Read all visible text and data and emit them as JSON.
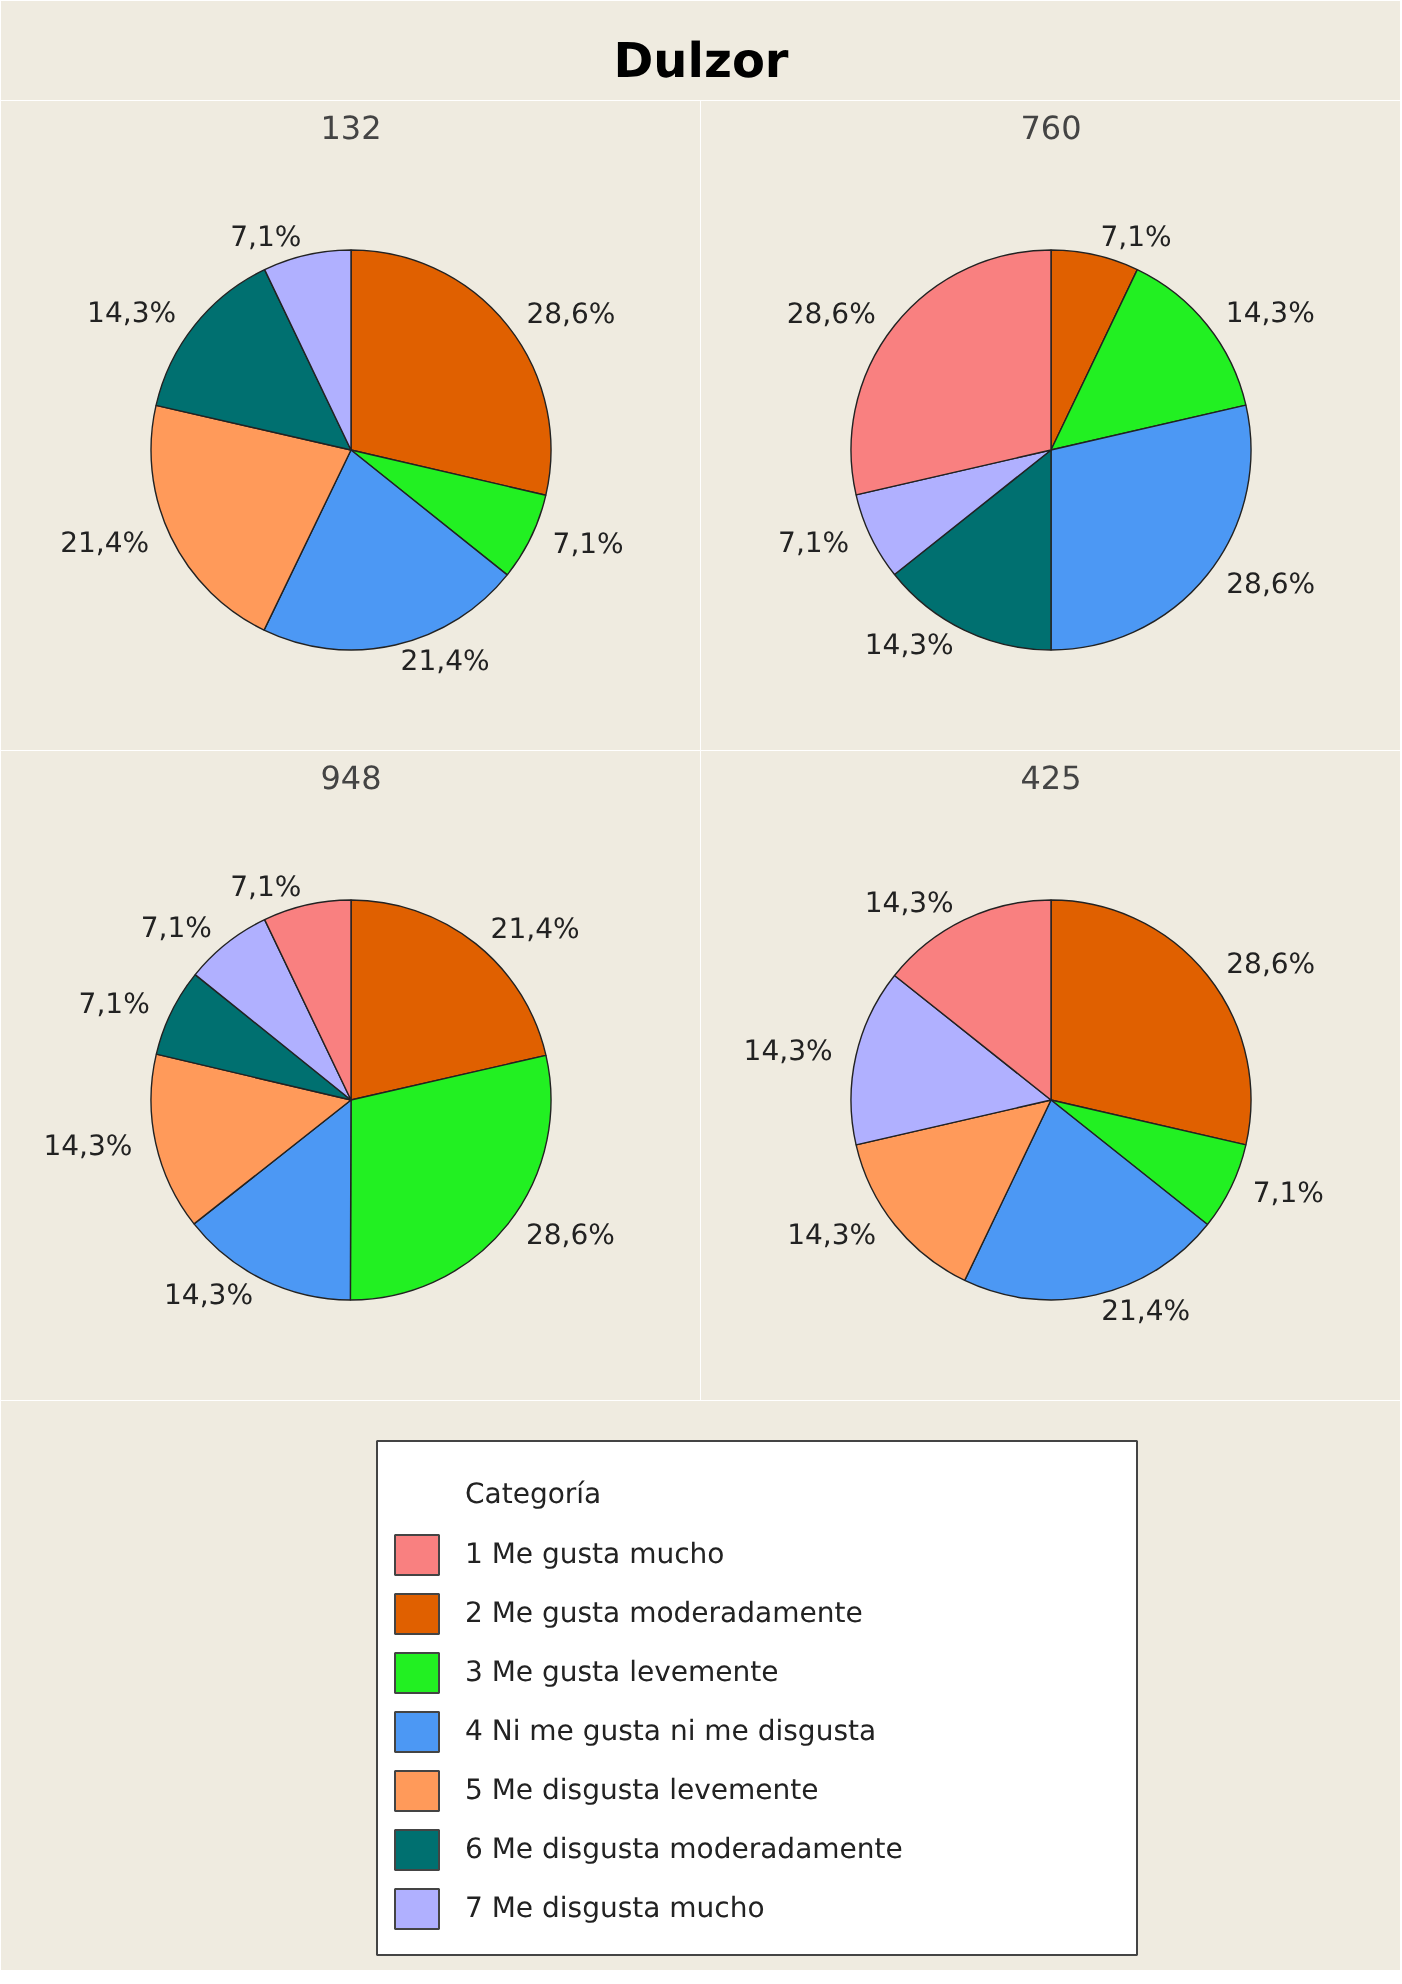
{
  "chart_data": [
    {
      "type": "pie",
      "title": "132",
      "annotations": [
        "Dulzor"
      ],
      "legend": "bottom",
      "legend_title": "Categoría",
      "categories": [
        "1 Me gusta mucho",
        "2 Me gusta moderadamente",
        "3 Me gusta levemente",
        "4 Ni me gusta ni me disgusta",
        "5 Me disgusta levemente",
        "6 Me disgusta moderadamente",
        "7 Me disgusta mucho"
      ],
      "colors": [
        "#f98080",
        "#e06000",
        "#22f022",
        "#4c98f4",
        "#ff9a5a",
        "#007070",
        "#b0b0ff"
      ],
      "values": [
        0,
        28.6,
        7.1,
        21.4,
        21.4,
        14.3,
        7.1
      ],
      "value_labels": [
        null,
        "28,6%",
        "7,1%",
        "21,4%",
        "21,4%",
        "14,3%",
        "7,1%"
      ]
    },
    {
      "type": "pie",
      "title": "760",
      "colors": [
        "#f98080",
        "#e06000",
        "#22f022",
        "#4c98f4",
        "#ff9a5a",
        "#007070",
        "#b0b0ff"
      ],
      "values": [
        28.6,
        7.1,
        14.3,
        28.6,
        0,
        14.3,
        7.1
      ],
      "value_labels": [
        "28,6%",
        "7,1%",
        "14,3%",
        "28,6%",
        null,
        "14,3%",
        "7,1%"
      ]
    },
    {
      "type": "pie",
      "title": "948",
      "colors": [
        "#f98080",
        "#e06000",
        "#22f022",
        "#4c98f4",
        "#ff9a5a",
        "#007070",
        "#b0b0ff"
      ],
      "values": [
        7.1,
        21.4,
        28.6,
        14.3,
        14.3,
        7.1,
        7.1
      ],
      "value_labels": [
        "7,1%",
        "21,4%",
        "28,6%",
        "14,3%",
        "14,3%",
        "7,1%",
        "7,1%"
      ]
    },
    {
      "type": "pie",
      "title": "425",
      "colors": [
        "#f98080",
        "#e06000",
        "#22f022",
        "#4c98f4",
        "#ff9a5a",
        "#007070",
        "#b0b0ff"
      ],
      "values": [
        14.3,
        28.6,
        7.1,
        21.4,
        14.3,
        0,
        14.3
      ],
      "value_labels": [
        "14,3%",
        "28,6%",
        "7,1%",
        "21,4%",
        "14,3%",
        null,
        "14,3%"
      ]
    }
  ]
}
